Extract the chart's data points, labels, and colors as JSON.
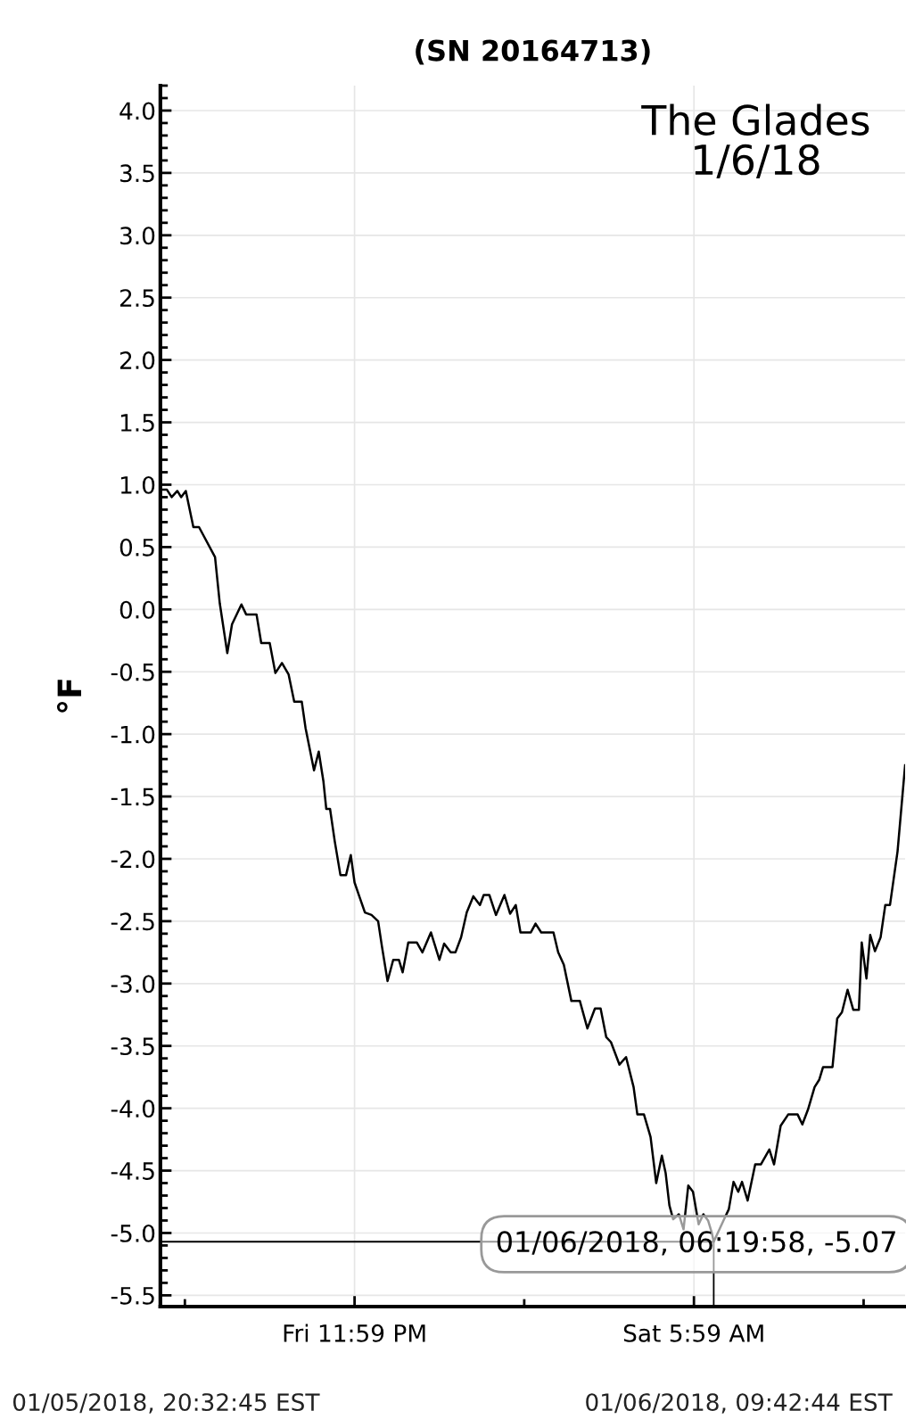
{
  "chart_data": {
    "type": "line",
    "title": "(SN 20164713)",
    "ylabel": "°F",
    "x": [
      "2018-01-05T20:33",
      "2018-01-05T20:40",
      "2018-01-05T20:45",
      "2018-01-05T20:51",
      "2018-01-05T20:55",
      "2018-01-05T21:00",
      "2018-01-05T21:08",
      "2018-01-05T21:14",
      "2018-01-05T21:31",
      "2018-01-05T21:36",
      "2018-01-05T21:44",
      "2018-01-05T21:49",
      "2018-01-05T21:59",
      "2018-01-05T22:04",
      "2018-01-05T22:15",
      "2018-01-05T22:20",
      "2018-01-05T22:29",
      "2018-01-05T22:35",
      "2018-01-05T22:42",
      "2018-01-05T22:49",
      "2018-01-05T22:55",
      "2018-01-05T23:03",
      "2018-01-05T23:07",
      "2018-01-05T23:16",
      "2018-01-05T23:21",
      "2018-01-05T23:26",
      "2018-01-05T23:29",
      "2018-01-05T23:33",
      "2018-01-05T23:38",
      "2018-01-05T23:44",
      "2018-01-05T23:50",
      "2018-01-05T23:55",
      "2018-01-05T23:59",
      "2018-01-06T00:04",
      "2018-01-06T00:10",
      "2018-01-06T00:17",
      "2018-01-06T00:24",
      "2018-01-06T00:28",
      "2018-01-06T00:34",
      "2018-01-06T00:40",
      "2018-01-06T00:46",
      "2018-01-06T00:50",
      "2018-01-06T00:56",
      "2018-01-06T01:05",
      "2018-01-06T01:11",
      "2018-01-06T01:20",
      "2018-01-06T01:29",
      "2018-01-06T01:34",
      "2018-01-06T01:41",
      "2018-01-06T01:46",
      "2018-01-06T01:52",
      "2018-01-06T01:58",
      "2018-01-06T02:05",
      "2018-01-06T02:12",
      "2018-01-06T02:16",
      "2018-01-06T02:22",
      "2018-01-06T02:29",
      "2018-01-06T02:38",
      "2018-01-06T02:44",
      "2018-01-06T02:50",
      "2018-01-06T02:55",
      "2018-01-06T03:06",
      "2018-01-06T03:11",
      "2018-01-06T03:17",
      "2018-01-06T03:30",
      "2018-01-06T03:35",
      "2018-01-06T03:41",
      "2018-01-06T03:49",
      "2018-01-06T03:58",
      "2018-01-06T04:06",
      "2018-01-06T04:14",
      "2018-01-06T04:20",
      "2018-01-06T04:26",
      "2018-01-06T04:31",
      "2018-01-06T04:40",
      "2018-01-06T04:47",
      "2018-01-06T04:55",
      "2018-01-06T04:59",
      "2018-01-06T05:06",
      "2018-01-06T05:13",
      "2018-01-06T05:19",
      "2018-01-06T05:25",
      "2018-01-06T05:29",
      "2018-01-06T05:33",
      "2018-01-06T05:37",
      "2018-01-06T05:43",
      "2018-01-06T05:48",
      "2018-01-06T05:53",
      "2018-01-06T05:58",
      "2018-01-06T06:04",
      "2018-01-06T06:09",
      "2018-01-06T06:14",
      "2018-01-06T06:18",
      "2018-01-06T06:20",
      "2018-01-06T06:31",
      "2018-01-06T06:36",
      "2018-01-06T06:41",
      "2018-01-06T06:46",
      "2018-01-06T06:50",
      "2018-01-06T06:56",
      "2018-01-06T07:04",
      "2018-01-06T07:10",
      "2018-01-06T07:19",
      "2018-01-06T07:24",
      "2018-01-06T07:31",
      "2018-01-06T07:39",
      "2018-01-06T07:49",
      "2018-01-06T07:54",
      "2018-01-06T08:00",
      "2018-01-06T08:07",
      "2018-01-06T08:12",
      "2018-01-06T08:16",
      "2018-01-06T08:26",
      "2018-01-06T08:31",
      "2018-01-06T08:36",
      "2018-01-06T08:42",
      "2018-01-06T08:48",
      "2018-01-06T08:54",
      "2018-01-06T08:57",
      "2018-01-06T09:02",
      "2018-01-06T09:06",
      "2018-01-06T09:11",
      "2018-01-06T09:17",
      "2018-01-06T09:22",
      "2018-01-06T09:27",
      "2018-01-06T09:35",
      "2018-01-06T09:43"
    ],
    "series": [
      {
        "color": "#000000",
        "values": [
          0.96,
          0.96,
          0.9,
          0.95,
          0.9,
          0.95,
          0.66,
          0.66,
          0.42,
          0.05,
          -0.35,
          -0.12,
          0.04,
          -0.04,
          -0.04,
          -0.27,
          -0.27,
          -0.51,
          -0.43,
          -0.52,
          -0.74,
          -0.74,
          -0.95,
          -1.29,
          -1.14,
          -1.38,
          -1.6,
          -1.6,
          -1.86,
          -2.13,
          -2.13,
          -1.97,
          -2.19,
          -2.3,
          -2.43,
          -2.45,
          -2.5,
          -2.7,
          -2.98,
          -2.81,
          -2.81,
          -2.91,
          -2.67,
          -2.67,
          -2.75,
          -2.59,
          -2.81,
          -2.68,
          -2.75,
          -2.75,
          -2.63,
          -2.43,
          -2.3,
          -2.37,
          -2.29,
          -2.29,
          -2.45,
          -2.29,
          -2.44,
          -2.37,
          -2.59,
          -2.59,
          -2.52,
          -2.59,
          -2.59,
          -2.75,
          -2.85,
          -3.14,
          -3.14,
          -3.36,
          -3.2,
          -3.2,
          -3.43,
          -3.47,
          -3.65,
          -3.59,
          -3.83,
          -4.05,
          -4.05,
          -4.23,
          -4.6,
          -4.38,
          -4.52,
          -4.78,
          -4.89,
          -4.85,
          -4.97,
          -4.62,
          -4.67,
          -4.93,
          -4.85,
          -4.9,
          -5.0,
          -5.07,
          -4.89,
          -4.81,
          -4.59,
          -4.67,
          -4.59,
          -4.74,
          -4.45,
          -4.45,
          -4.33,
          -4.45,
          -4.14,
          -4.05,
          -4.05,
          -4.13,
          -4.01,
          -3.83,
          -3.77,
          -3.67,
          -3.67,
          -3.28,
          -3.23,
          -3.05,
          -3.21,
          -3.21,
          -2.67,
          -2.96,
          -2.61,
          -2.74,
          -2.63,
          -2.37,
          -2.37,
          -1.94,
          -1.25
        ]
      }
    ],
    "xlim": [
      "2018-01-05T20:33",
      "2018-01-06T09:43"
    ],
    "xticks": [
      {
        "value": "2018-01-05T20:59",
        "label": null
      },
      {
        "value": "2018-01-05T23:59",
        "label": "Fri 11:59 PM"
      },
      {
        "value": "2018-01-06T02:59",
        "label": null
      },
      {
        "value": "2018-01-06T05:59",
        "label": "Sat 5:59 AM"
      },
      {
        "value": "2018-01-06T08:59",
        "label": null
      }
    ],
    "ylim": [
      -5.59,
      4.2
    ],
    "yticks": [
      {
        "value": -5.5,
        "label": "-5.5"
      },
      {
        "value": -5,
        "label": "-5.0"
      },
      {
        "value": -4.5,
        "label": "-4.5"
      },
      {
        "value": -4,
        "label": "-4.0"
      },
      {
        "value": -3.5,
        "label": "-3.5"
      },
      {
        "value": -3,
        "label": "-3.0"
      },
      {
        "value": -2.5,
        "label": "-2.5"
      },
      {
        "value": -2,
        "label": "-2.0"
      },
      {
        "value": -1.5,
        "label": "-1.5"
      },
      {
        "value": -1,
        "label": "-1.0"
      },
      {
        "value": -0.5,
        "label": "-0.5"
      },
      {
        "value": 0,
        "label": "0.0"
      },
      {
        "value": 0.5,
        "label": "0.5"
      },
      {
        "value": 1,
        "label": "1.0"
      },
      {
        "value": 1.5,
        "label": "1.5"
      },
      {
        "value": 2,
        "label": "2.0"
      },
      {
        "value": 2.5,
        "label": "2.5"
      },
      {
        "value": 3,
        "label": "3.0"
      },
      {
        "value": 3.5,
        "label": "3.5"
      },
      {
        "value": 4,
        "label": "4.0"
      }
    ],
    "grid": true,
    "legend": false,
    "line_style": "solid",
    "marker": "none",
    "annotations": [
      "The Glades\n1/6/18",
      "01/05/2018, 20:32:45 EST",
      "01/06/2018, 09:42:44 EST",
      {
        "text": "01/06/2018, 06:19:58, -5.07",
        "x": "2018-01-06T06:20",
        "y": -5.07
      }
    ]
  }
}
